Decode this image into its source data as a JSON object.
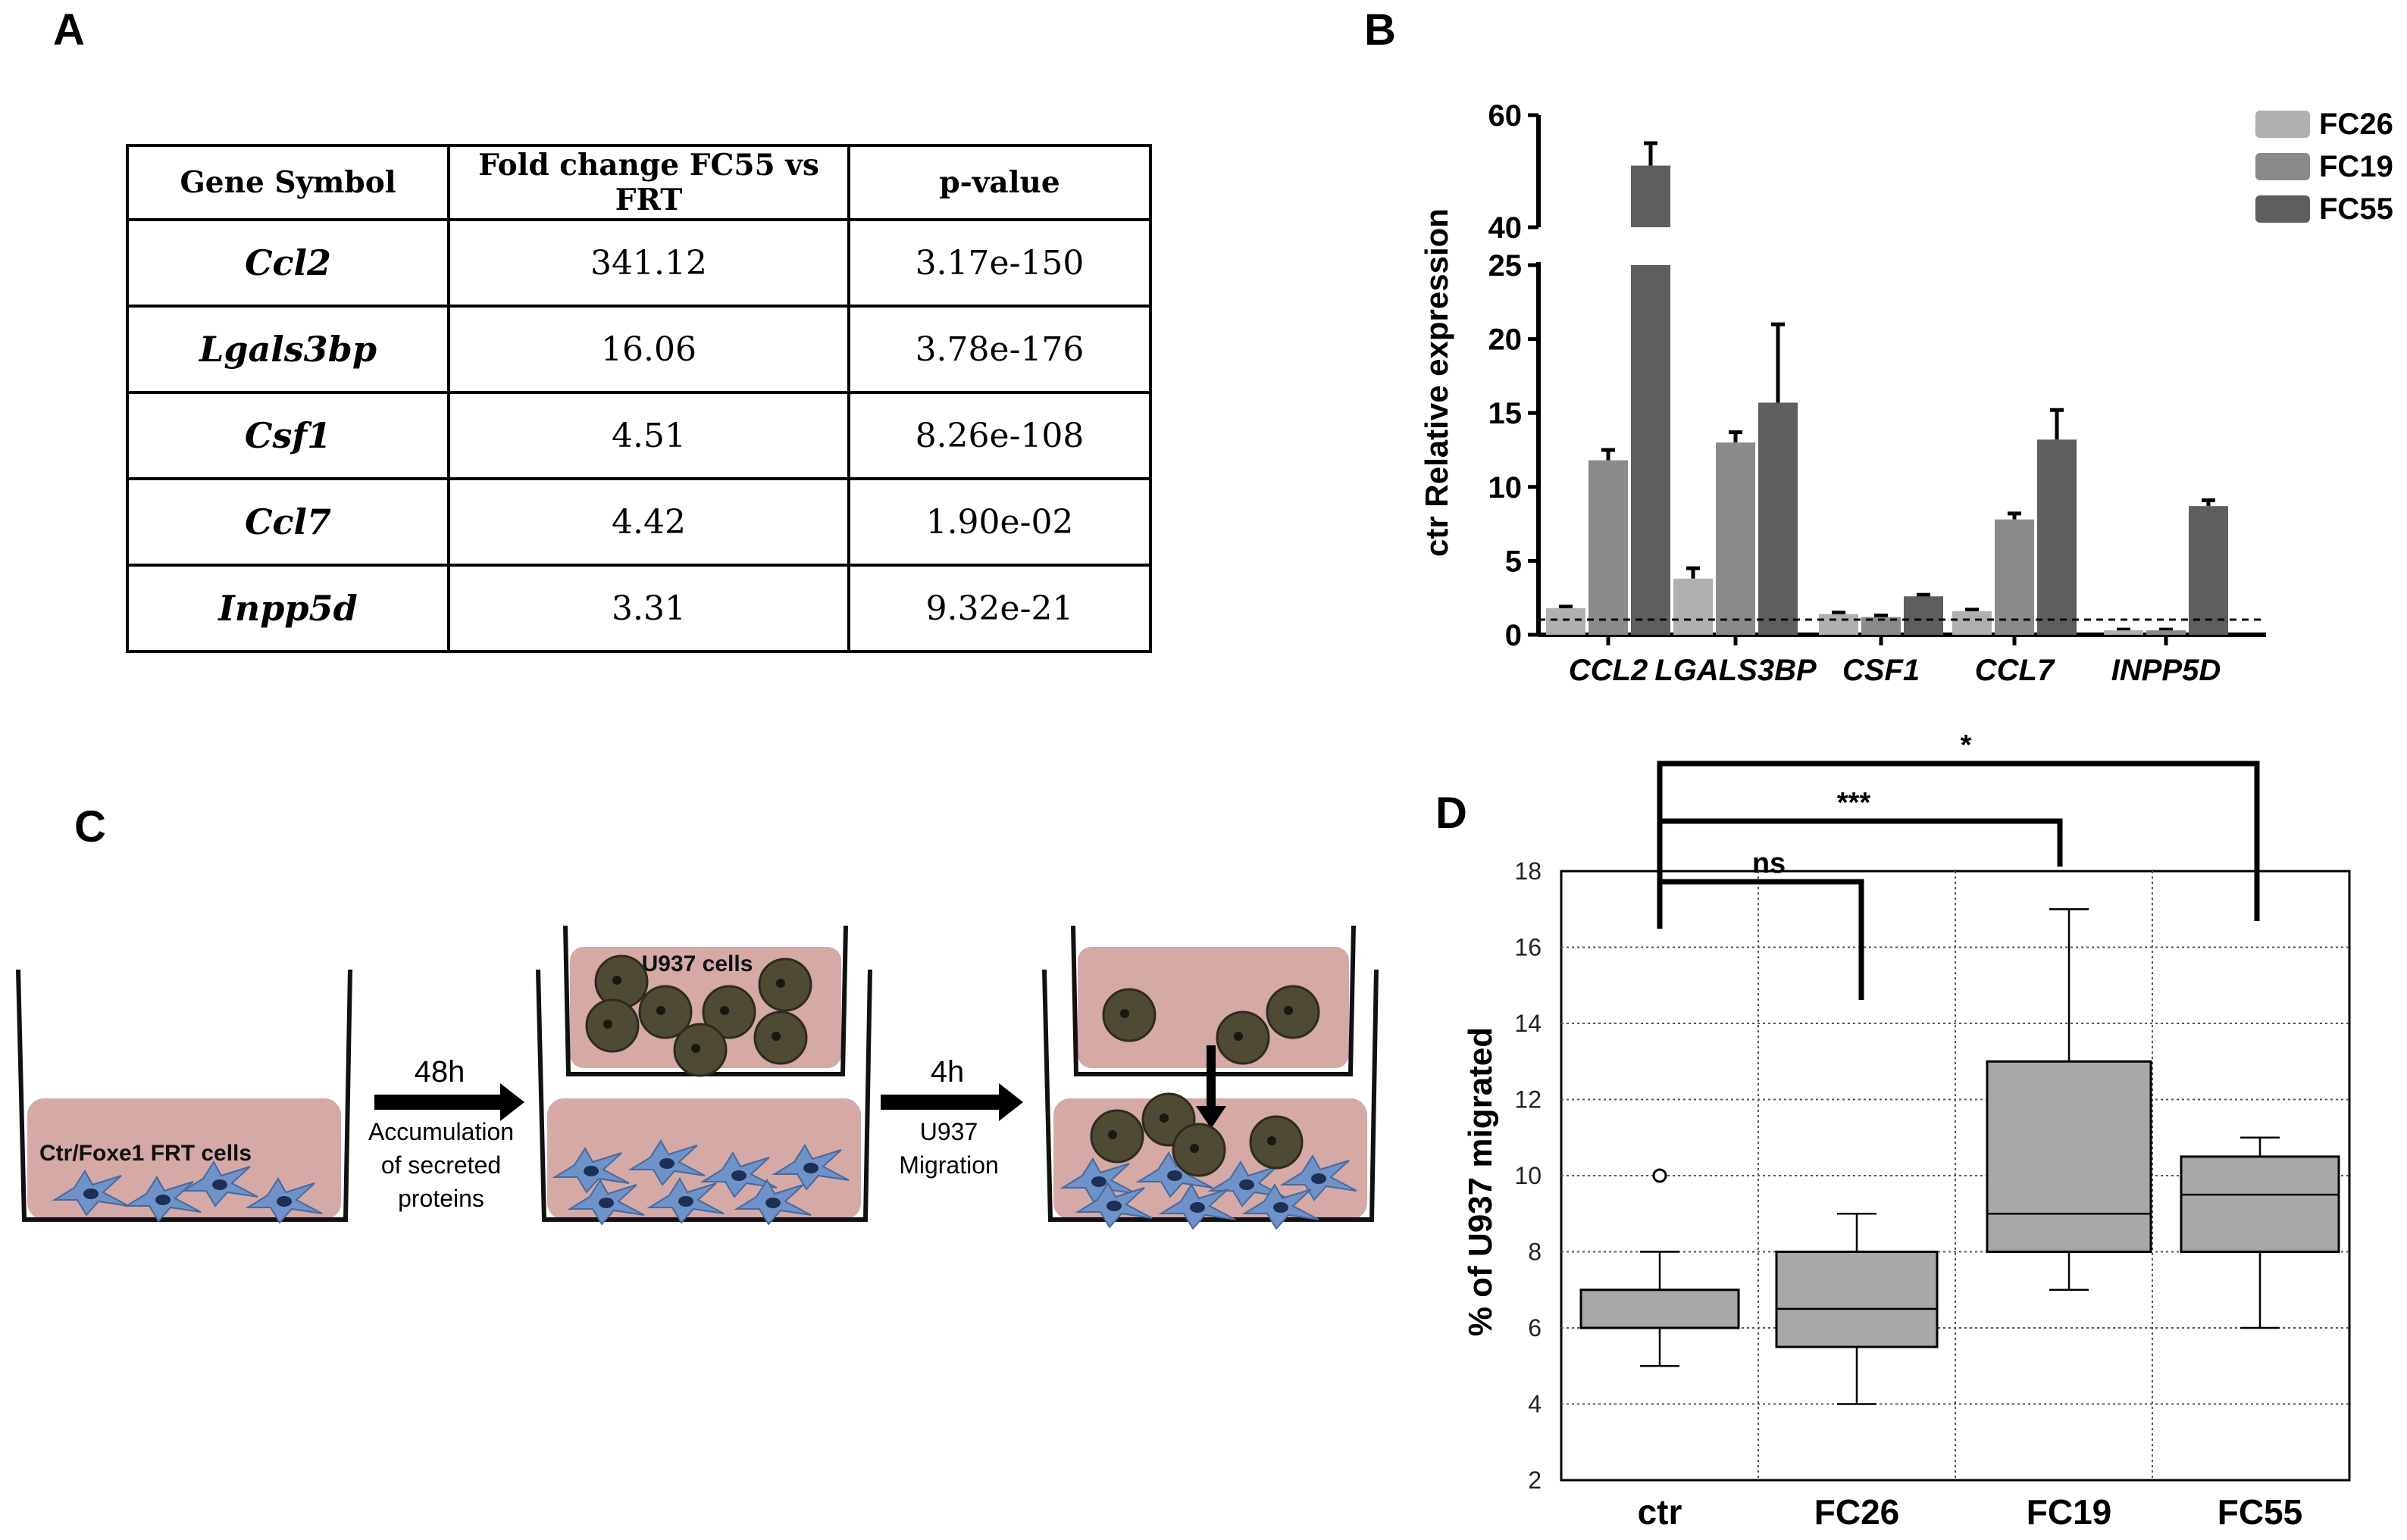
{
  "panels": {
    "a": "A",
    "b": "B",
    "c": "C",
    "d": "D"
  },
  "table": {
    "headers": [
      "Gene Symbol",
      "Fold change FC55 vs FRT",
      "p-value"
    ],
    "rows": [
      [
        "Ccl2",
        "341.12",
        "3.17e-150"
      ],
      [
        "Lgals3bp",
        "16.06",
        "3.78e-176"
      ],
      [
        "Csf1",
        "4.51",
        "8.26e-108"
      ],
      [
        "Ccl7",
        "4.42",
        "1.90e-02"
      ],
      [
        "Inpp5d",
        "3.31",
        "9.32e-21"
      ]
    ]
  },
  "colors": {
    "fc26": "#b0b0b3",
    "fc19": "#8a8a8c",
    "fc55": "#5e5e60",
    "box": "#a8a8a8",
    "medium": "#d4a9a6",
    "cell": "#6f93c9",
    "u937": "#4e4a34"
  },
  "diagram": {
    "well1_label": "Ctr/Foxe1 FRT cells",
    "well2_label": "U937 cells",
    "arrow1_time": "48h",
    "arrow1_text": [
      "Accumulation",
      "of secreted",
      "proteins"
    ],
    "arrow2_time": "4h",
    "arrow2_text": [
      "U937",
      "Migration"
    ]
  },
  "chart_data": [
    {
      "type": "bar",
      "panel": "B",
      "ylabel": "ctr Relative expression",
      "categories": [
        "CCL2",
        "LGALS3BP",
        "CSF1",
        "CCL7",
        "INPP5D"
      ],
      "series": [
        {
          "name": "FC26",
          "values": [
            1.8,
            3.8,
            1.4,
            1.6,
            0.3
          ],
          "errors": [
            0.1,
            0.7,
            0.1,
            0.1,
            0.05
          ]
        },
        {
          "name": "FC19",
          "values": [
            11.8,
            13.0,
            1.2,
            7.8,
            0.3
          ],
          "errors": [
            0.7,
            0.7,
            0.1,
            0.4,
            0.05
          ]
        },
        {
          "name": "FC55",
          "values": [
            51.0,
            15.7,
            2.6,
            13.2,
            8.7
          ],
          "errors": [
            4.0,
            5.3,
            0.1,
            2.0,
            0.4
          ]
        }
      ],
      "y_break": [
        25,
        40
      ],
      "yticks_lower": [
        0,
        5,
        10,
        15,
        20,
        25
      ],
      "yticks_upper": [
        40,
        60
      ],
      "reference_line": 1.0
    },
    {
      "type": "box",
      "panel": "D",
      "ylabel": "% of U937 migrated",
      "categories": [
        "ctr",
        "FC26",
        "FC19",
        "FC55"
      ],
      "ylim": [
        2,
        18
      ],
      "yticks": [
        2,
        4,
        6,
        8,
        10,
        12,
        14,
        16,
        18
      ],
      "boxes": [
        {
          "min": 5,
          "q1": 6,
          "median": 6,
          "q3": 7,
          "max": 8,
          "outliers": [
            10
          ]
        },
        {
          "min": 4,
          "q1": 5.5,
          "median": 6.5,
          "q3": 8,
          "max": 9,
          "outliers": []
        },
        {
          "min": 7,
          "q1": 8,
          "median": 9,
          "q3": 13,
          "max": 17,
          "outliers": []
        },
        {
          "min": 6,
          "q1": 8,
          "median": 9.5,
          "q3": 10.5,
          "max": 11,
          "outliers": []
        }
      ],
      "significance": [
        {
          "from": "ctr",
          "to": "FC26",
          "label": "ns"
        },
        {
          "from": "ctr",
          "to": "FC19",
          "label": "***"
        },
        {
          "from": "ctr",
          "to": "FC55",
          "label": "*"
        }
      ]
    }
  ]
}
